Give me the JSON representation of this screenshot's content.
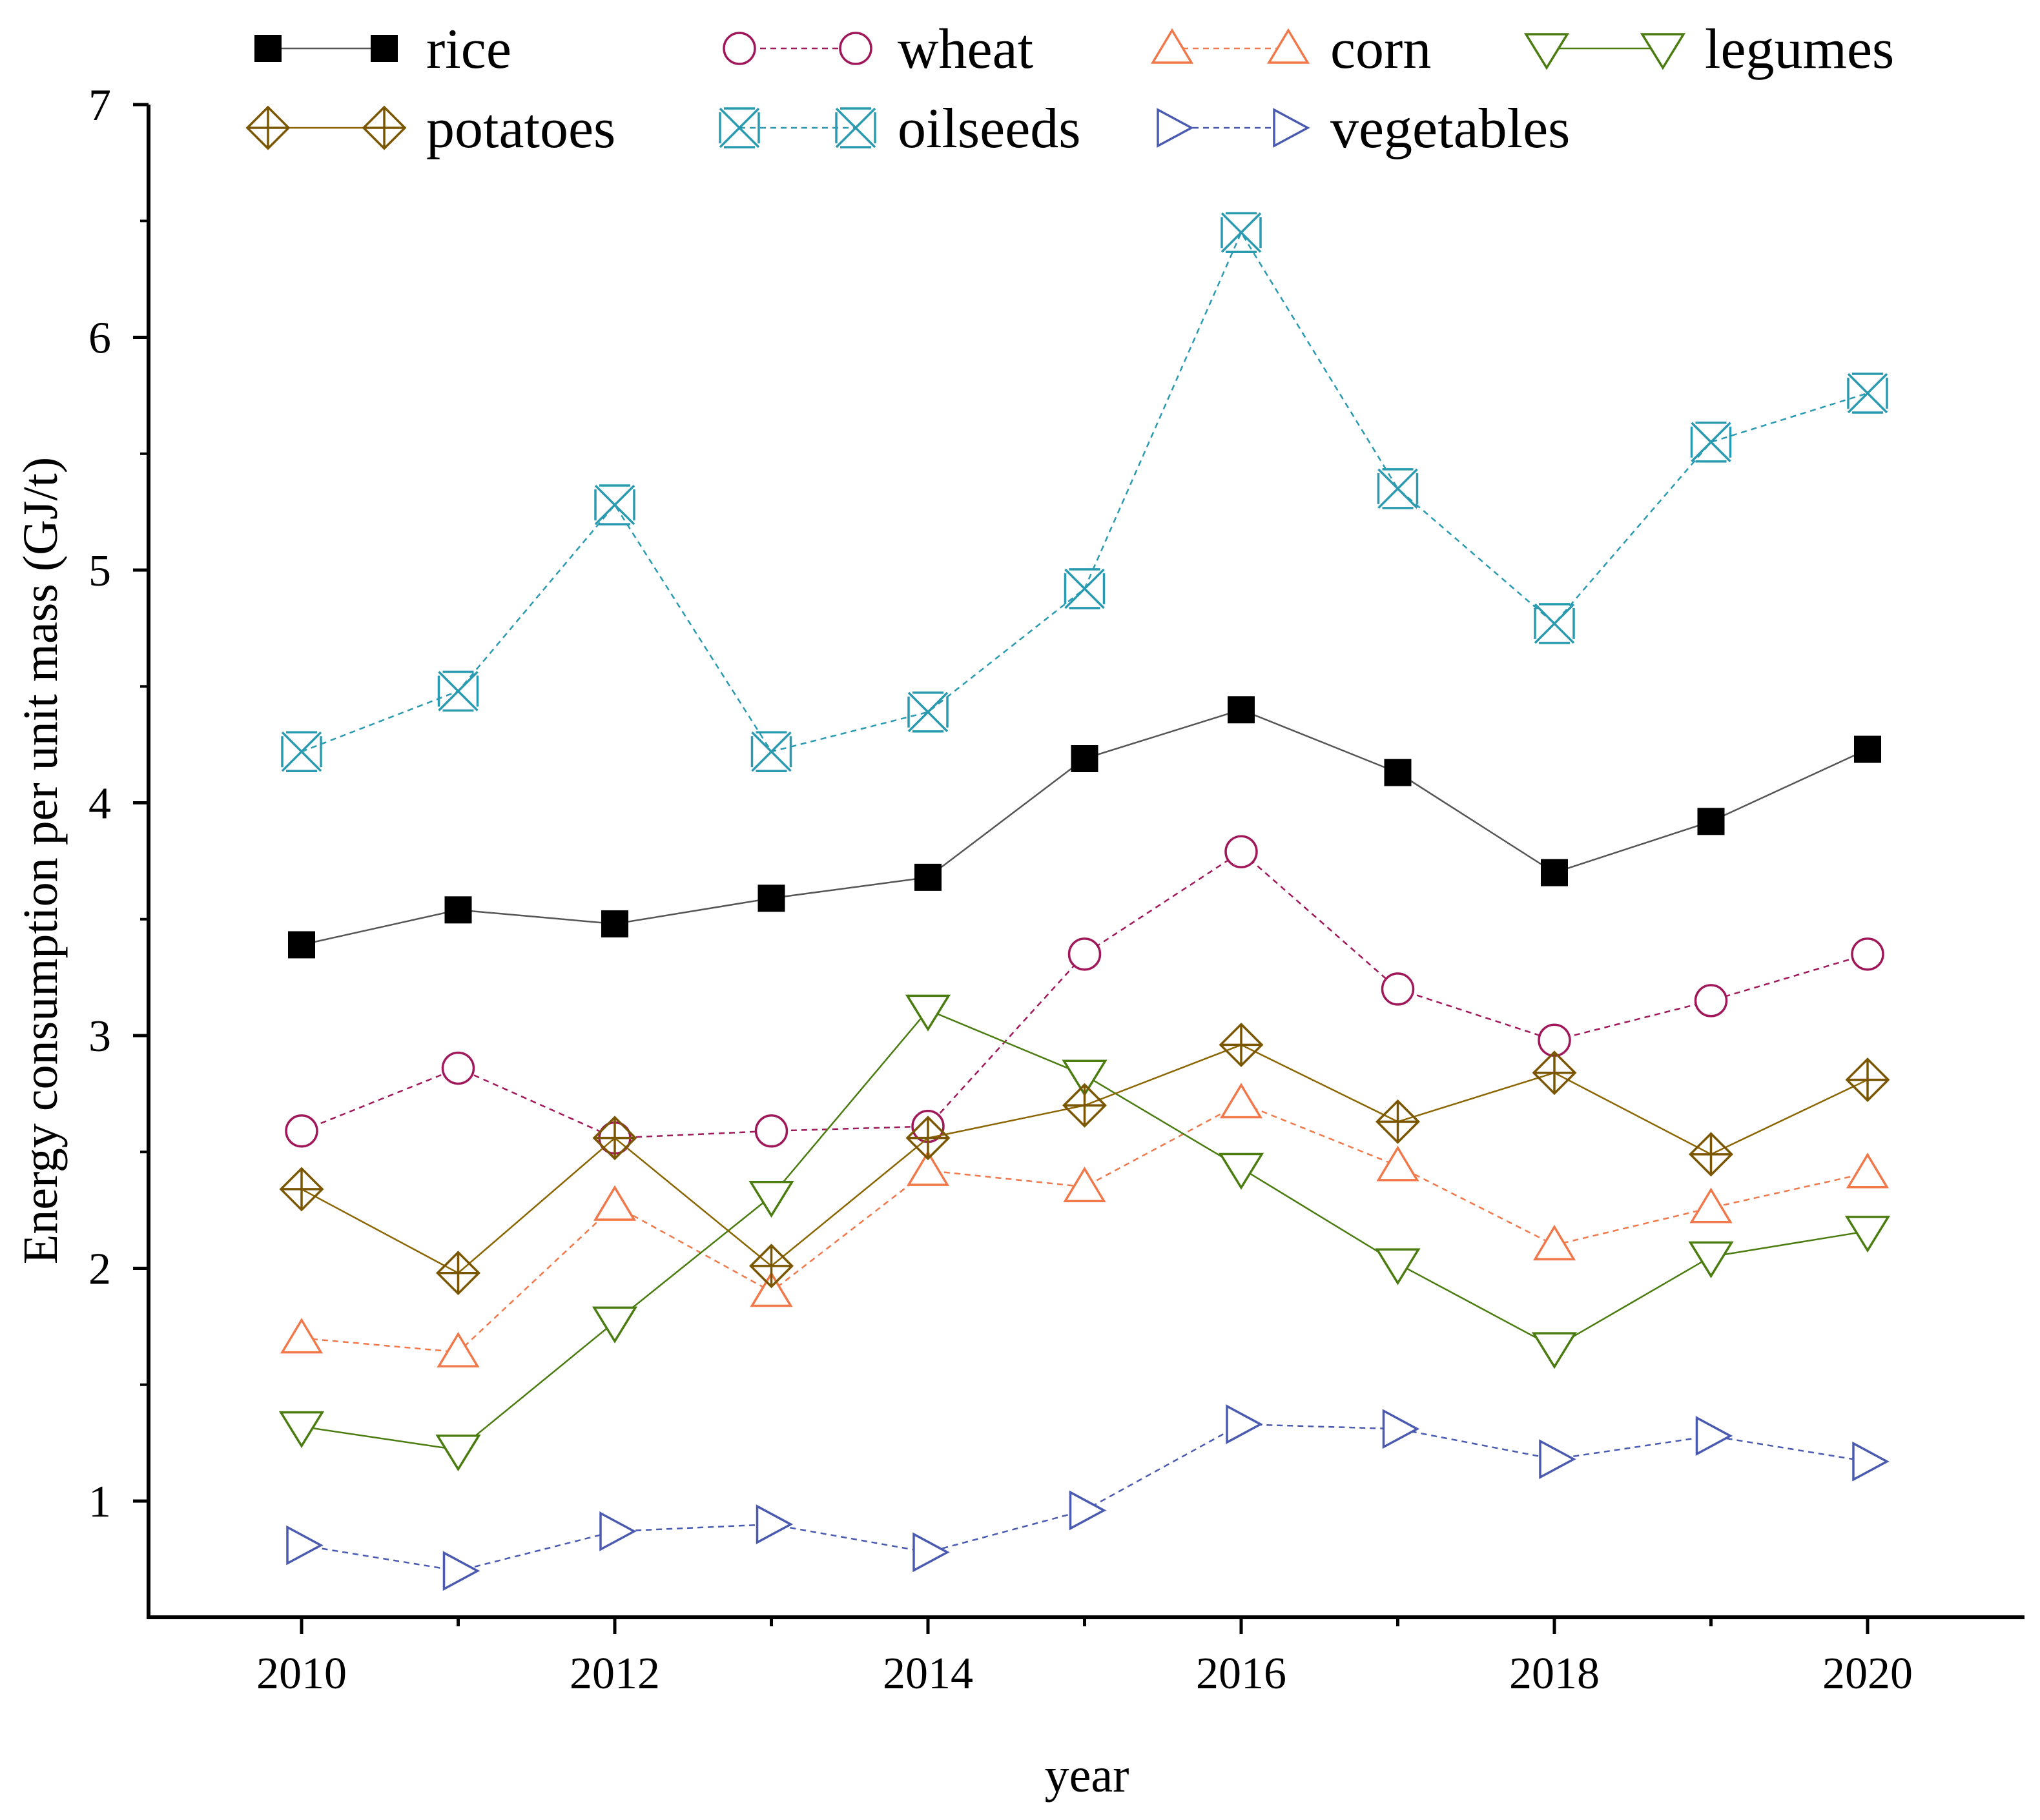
{
  "chart_data": {
    "type": "line",
    "title": "",
    "xlabel": "year",
    "ylabel": "Energy consumption per unit mass (GJ/t)",
    "xlim": [
      2009,
      2021
    ],
    "ylim": [
      0.5,
      7
    ],
    "x": [
      2010,
      2011,
      2012,
      2013,
      2014,
      2015,
      2016,
      2017,
      2018,
      2019,
      2020
    ],
    "x_tick_labels": [
      "2010",
      "2012",
      "2014",
      "2016",
      "2018",
      "2020"
    ],
    "x_tick_values": [
      2010,
      2012,
      2014,
      2016,
      2018,
      2020
    ],
    "y_tick_labels": [
      "1",
      "2",
      "3",
      "4",
      "5",
      "6",
      "7"
    ],
    "y_tick_values": [
      1,
      2,
      3,
      4,
      5,
      6,
      7
    ],
    "grid": false,
    "legend_position": "top",
    "series": [
      {
        "name": "rice",
        "color": "#555555",
        "marker_color": "#000000",
        "marker": "square-filled",
        "line_style": "solid",
        "values": [
          3.39,
          3.54,
          3.48,
          3.59,
          3.68,
          4.19,
          4.4,
          4.13,
          3.7,
          3.92,
          4.23
        ]
      },
      {
        "name": "wheat",
        "color": "#a0185a",
        "marker_color": "#a0185a",
        "marker": "circle",
        "line_style": "dashed",
        "values": [
          2.59,
          2.86,
          2.56,
          2.59,
          2.61,
          3.35,
          3.79,
          3.2,
          2.98,
          3.15,
          3.35
        ]
      },
      {
        "name": "corn",
        "color": "#f0784a",
        "marker_color": "#f0784a",
        "marker": "triangle-up",
        "line_style": "dashed",
        "values": [
          1.7,
          1.64,
          2.27,
          1.9,
          2.42,
          2.35,
          2.71,
          2.44,
          2.1,
          2.26,
          2.41
        ]
      },
      {
        "name": "legumes",
        "color": "#4a7c10",
        "marker_color": "#4a7c10",
        "marker": "triangle-down",
        "line_style": "solid",
        "values": [
          1.32,
          1.22,
          1.77,
          2.31,
          3.11,
          2.83,
          2.43,
          2.02,
          1.66,
          2.05,
          2.16
        ]
      },
      {
        "name": "potatoes",
        "color": "#8a6500",
        "marker_color": "#7a5600",
        "marker": "diamond-cross",
        "line_style": "solid",
        "values": [
          2.34,
          1.98,
          2.56,
          2.01,
          2.56,
          2.7,
          2.96,
          2.63,
          2.84,
          2.49,
          2.81
        ]
      },
      {
        "name": "oilseeds",
        "color": "#2a9ab0",
        "marker_color": "#2a9ab0",
        "marker": "x-cross",
        "line_style": "dashed",
        "values": [
          4.22,
          4.48,
          5.28,
          4.22,
          4.39,
          4.92,
          6.45,
          5.35,
          4.77,
          5.55,
          5.76
        ]
      },
      {
        "name": "vegetables",
        "color": "#4a5ab0",
        "marker_color": "#4a5ab0",
        "marker": "triangle-right",
        "line_style": "dashed",
        "values": [
          0.81,
          0.7,
          0.87,
          0.9,
          0.78,
          0.96,
          1.33,
          1.31,
          1.18,
          1.28,
          1.17
        ]
      }
    ]
  }
}
